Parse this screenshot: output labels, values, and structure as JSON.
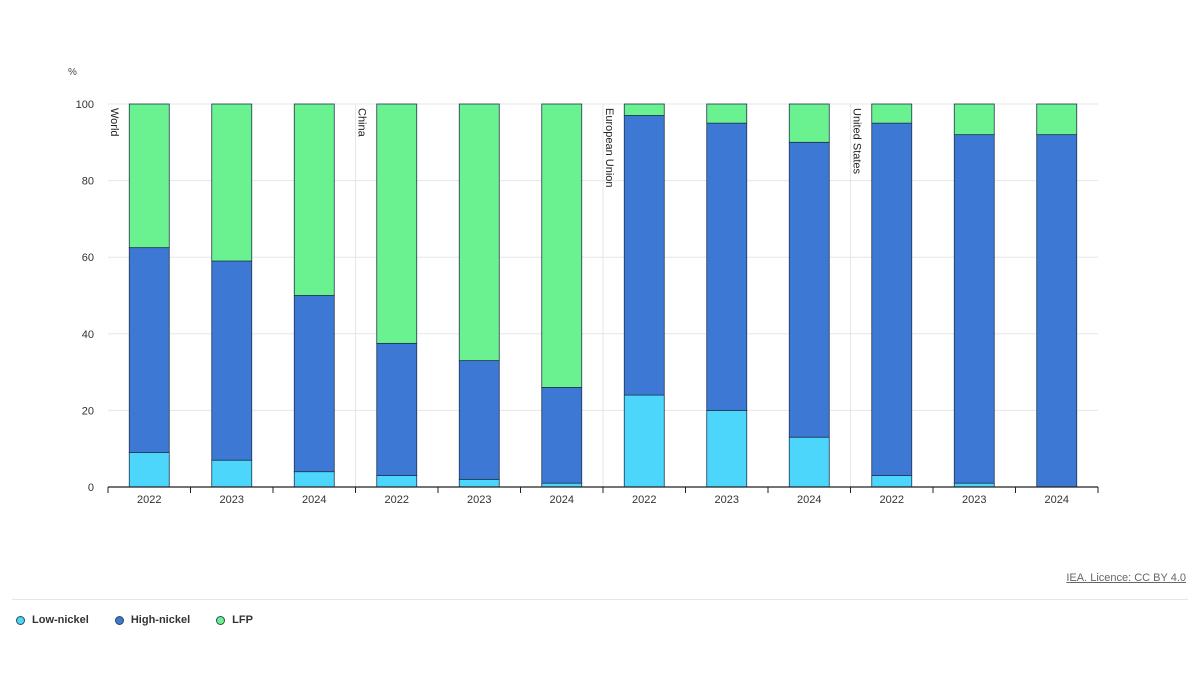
{
  "chart_data": {
    "type": "bar",
    "stacked": true,
    "ylabel": "%",
    "ylim": [
      0,
      100
    ],
    "yticks": [
      0,
      20,
      40,
      60,
      80,
      100
    ],
    "grid": true,
    "legend_position": "bottom-left",
    "groups": [
      {
        "label": "World",
        "categories": [
          "2022",
          "2023",
          "2024"
        ]
      },
      {
        "label": "China",
        "categories": [
          "2022",
          "2023",
          "2024"
        ]
      },
      {
        "label": "European Union",
        "categories": [
          "2022",
          "2023",
          "2024"
        ]
      },
      {
        "label": "United States",
        "categories": [
          "2022",
          "2023",
          "2024"
        ]
      }
    ],
    "categories": [
      "2022",
      "2023",
      "2024",
      "2022",
      "2023",
      "2024",
      "2022",
      "2023",
      "2024",
      "2022",
      "2023",
      "2024"
    ],
    "series": [
      {
        "name": "Low-nickel",
        "color": "#4dd6fb",
        "values": [
          9,
          7,
          4,
          3,
          2,
          1,
          24,
          20,
          13,
          3,
          1,
          0
        ]
      },
      {
        "name": "High-nickel",
        "color": "#3c78d4",
        "values": [
          53.5,
          52,
          46,
          34.5,
          31,
          25,
          73,
          75,
          77,
          92,
          91,
          92
        ]
      },
      {
        "name": "LFP",
        "color": "#69f28f",
        "values": [
          37.5,
          41,
          50,
          62.5,
          67,
          74,
          3,
          5,
          10,
          5,
          8,
          8
        ]
      }
    ]
  },
  "licence": "IEA. Licence: CC BY 4.0"
}
